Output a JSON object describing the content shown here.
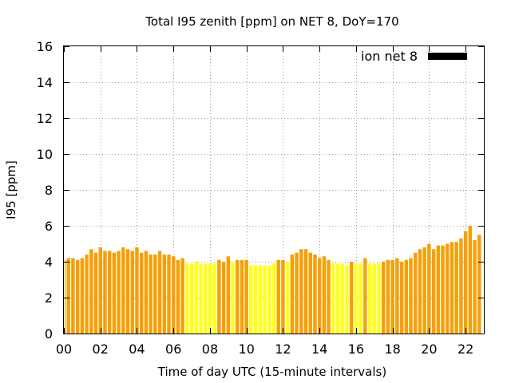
{
  "chart_data": {
    "type": "bar",
    "title": "Total I95 zenith [ppm] on NET 8, DoY=170",
    "xlabel": "Time of day UTC (15-minute intervals)",
    "ylabel": "I95 [ppm]",
    "xlim": [
      0,
      23
    ],
    "ylim": [
      0,
      16
    ],
    "x_ticks": [
      "00",
      "02",
      "04",
      "06",
      "08",
      "10",
      "12",
      "14",
      "16",
      "18",
      "20",
      "22"
    ],
    "y_ticks": [
      "0",
      "2",
      "4",
      "6",
      "8",
      "10",
      "12",
      "14",
      "16"
    ],
    "grid": true,
    "legend_position": "top-right",
    "interval_hours": 0.25,
    "series": [
      {
        "name": "ion net 8",
        "color": "#000000",
        "bar_colors": {
          "high": "#f5a00a",
          "low": "#ffff1a"
        },
        "values": [
          4.1,
          4.2,
          4.2,
          4.1,
          4.2,
          4.4,
          4.7,
          4.5,
          4.8,
          4.6,
          4.6,
          4.5,
          4.6,
          4.8,
          4.7,
          4.6,
          4.8,
          4.5,
          4.6,
          4.4,
          4.4,
          4.6,
          4.4,
          4.4,
          4.3,
          4.1,
          4.2,
          3.9,
          3.9,
          4.0,
          3.9,
          3.9,
          3.9,
          3.9,
          4.1,
          4.0,
          4.3,
          4.0,
          4.1,
          4.1,
          4.1,
          3.8,
          3.8,
          3.8,
          3.8,
          3.8,
          3.9,
          4.1,
          4.1,
          4.0,
          4.4,
          4.5,
          4.7,
          4.7,
          4.5,
          4.4,
          4.2,
          4.3,
          4.1,
          3.9,
          3.9,
          3.9,
          3.8,
          4.0,
          3.9,
          3.9,
          4.2,
          3.9,
          3.9,
          3.9,
          4.0,
          4.1,
          4.1,
          4.2,
          4.0,
          4.1,
          4.2,
          4.5,
          4.7,
          4.8,
          5.0,
          4.7,
          4.9,
          4.9,
          5.0,
          5.1,
          5.1,
          5.3,
          5.7,
          6.0,
          5.2,
          5.5
        ],
        "bar_color_codes": [
          "h",
          "h",
          "h",
          "h",
          "h",
          "h",
          "h",
          "h",
          "h",
          "h",
          "h",
          "h",
          "h",
          "h",
          "h",
          "h",
          "h",
          "h",
          "h",
          "h",
          "h",
          "h",
          "h",
          "h",
          "h",
          "h",
          "h",
          "l",
          "l",
          "l",
          "l",
          "l",
          "l",
          "l",
          "h",
          "h",
          "h",
          "l",
          "h",
          "h",
          "h",
          "l",
          "l",
          "l",
          "l",
          "l",
          "l",
          "h",
          "h",
          "l",
          "h",
          "h",
          "h",
          "h",
          "h",
          "h",
          "h",
          "h",
          "h",
          "l",
          "l",
          "l",
          "l",
          "h",
          "l",
          "l",
          "h",
          "l",
          "l",
          "l",
          "h",
          "h",
          "h",
          "h",
          "h",
          "h",
          "h",
          "h",
          "h",
          "h",
          "h",
          "h",
          "h",
          "h",
          "h",
          "h",
          "h",
          "h",
          "h",
          "h",
          "h",
          "h"
        ]
      }
    ]
  }
}
